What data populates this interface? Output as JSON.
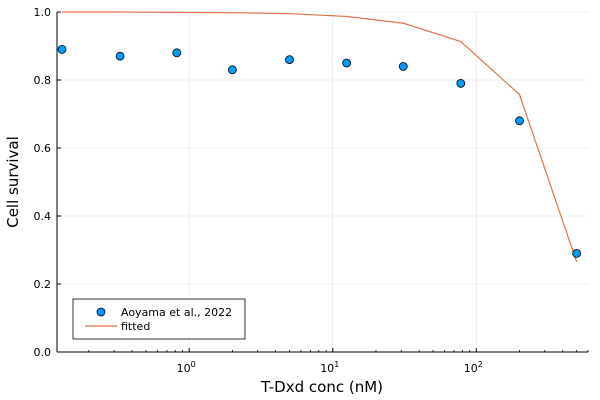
{
  "chart_data": {
    "type": "scatter",
    "title": "",
    "xlabel": "T-Dxd conc (nM)",
    "ylabel": "Cell survival",
    "xscale": "log10",
    "xlim": [
      0.12,
      600
    ],
    "ylim": [
      0.0,
      1.0
    ],
    "grid": true,
    "legend_position": "bottom-left",
    "xticks": [
      {
        "value": 1,
        "base": "10",
        "exp": "0"
      },
      {
        "value": 10,
        "base": "10",
        "exp": "1"
      },
      {
        "value": 100,
        "base": "10",
        "exp": "2"
      }
    ],
    "yticks": [
      {
        "value": 0.0,
        "label": "0.0"
      },
      {
        "value": 0.2,
        "label": "0.2"
      },
      {
        "value": 0.4,
        "label": "0.4"
      },
      {
        "value": 0.6,
        "label": "0.6"
      },
      {
        "value": 0.8,
        "label": "0.8"
      },
      {
        "value": 1.0,
        "label": "1.0"
      }
    ],
    "series": [
      {
        "name": "Aoyama et al., 2022",
        "kind": "scatter",
        "color": "#009af9",
        "x": [
          0.13,
          0.33,
          0.82,
          2.0,
          5.0,
          12.5,
          31,
          78,
          200,
          500
        ],
        "y": [
          0.89,
          0.87,
          0.88,
          0.83,
          0.86,
          0.85,
          0.84,
          0.79,
          0.68,
          0.29
        ]
      },
      {
        "name": "fitted",
        "kind": "line",
        "color": "#e26f46",
        "x": [
          0.13,
          0.33,
          0.82,
          2.0,
          5.0,
          12.5,
          31,
          78,
          200,
          500
        ],
        "y": [
          1.0,
          1.0,
          0.999,
          0.998,
          0.995,
          0.987,
          0.967,
          0.913,
          0.757,
          0.265
        ]
      }
    ]
  }
}
